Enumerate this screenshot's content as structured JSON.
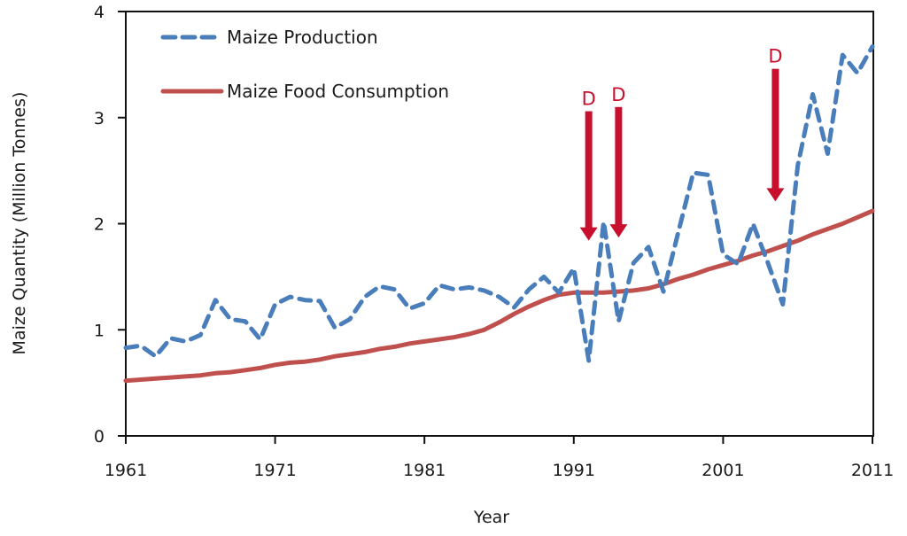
{
  "chart_data": {
    "type": "line",
    "title": "",
    "xlabel": "Year",
    "ylabel": "Maize Quantity (Million Tonnes)",
    "xlim": [
      1961,
      2011
    ],
    "ylim": [
      0,
      4
    ],
    "grid": false,
    "legend_position": "top-left",
    "x_ticks": [
      1961,
      1971,
      1981,
      1991,
      2001,
      2011
    ],
    "x_tick_labels": [
      "1961",
      "1971",
      "1981",
      "1991",
      "2001",
      "2011"
    ],
    "y_ticks": [
      0,
      1,
      2,
      3,
      4
    ],
    "y_tick_labels": [
      "0",
      "1",
      "2",
      "3",
      "4"
    ],
    "x": [
      1961,
      1962,
      1963,
      1964,
      1965,
      1966,
      1967,
      1968,
      1969,
      1970,
      1971,
      1972,
      1973,
      1974,
      1975,
      1976,
      1977,
      1978,
      1979,
      1980,
      1981,
      1982,
      1983,
      1984,
      1985,
      1986,
      1987,
      1988,
      1989,
      1990,
      1991,
      1992,
      1993,
      1994,
      1995,
      1996,
      1997,
      1998,
      1999,
      2000,
      2001,
      2002,
      2003,
      2004,
      2005,
      2006,
      2007,
      2008,
      2009,
      2010,
      2011
    ],
    "series": [
      {
        "name": "Maize Production",
        "style": "dashed",
        "color": "#4a7ebb",
        "values": [
          0.83,
          0.85,
          0.75,
          0.92,
          0.89,
          0.95,
          1.28,
          1.1,
          1.08,
          0.91,
          1.24,
          1.31,
          1.28,
          1.27,
          1.02,
          1.1,
          1.31,
          1.41,
          1.38,
          1.2,
          1.25,
          1.42,
          1.38,
          1.4,
          1.37,
          1.31,
          1.21,
          1.38,
          1.5,
          1.35,
          1.58,
          0.71,
          2.02,
          1.08,
          1.63,
          1.78,
          1.36,
          1.92,
          2.48,
          2.46,
          1.71,
          1.62,
          2.0,
          1.63,
          1.24,
          2.55,
          3.22,
          2.66,
          3.59,
          3.42,
          3.67
        ]
      },
      {
        "name": "Maize Food Consumption",
        "style": "solid",
        "color": "#c0504d",
        "values": [
          0.52,
          0.53,
          0.54,
          0.55,
          0.56,
          0.57,
          0.59,
          0.6,
          0.62,
          0.64,
          0.67,
          0.69,
          0.7,
          0.72,
          0.75,
          0.77,
          0.79,
          0.82,
          0.84,
          0.87,
          0.89,
          0.91,
          0.93,
          0.96,
          1.0,
          1.07,
          1.15,
          1.22,
          1.28,
          1.33,
          1.35,
          1.35,
          1.35,
          1.36,
          1.37,
          1.39,
          1.43,
          1.48,
          1.52,
          1.57,
          1.61,
          1.65,
          1.7,
          1.74,
          1.79,
          1.84,
          1.9,
          1.95,
          2.0,
          2.06,
          2.12
        ]
      }
    ],
    "annotations": [
      {
        "label": "D",
        "x": 1992,
        "arrow_top": 3.06,
        "arrow_tip": 1.84,
        "color": "#c8102e"
      },
      {
        "label": "D",
        "x": 1994,
        "arrow_top": 3.1,
        "arrow_tip": 1.87,
        "color": "#c8102e"
      },
      {
        "label": "D",
        "x": 2004.5,
        "arrow_top": 3.46,
        "arrow_tip": 2.21,
        "color": "#c8102e"
      }
    ]
  }
}
